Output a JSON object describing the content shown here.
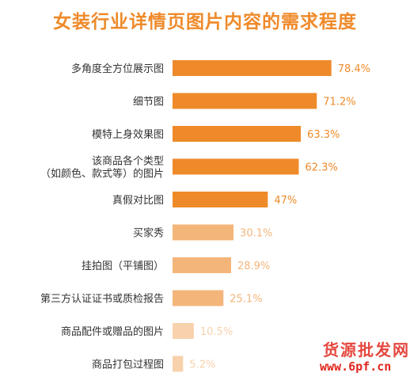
{
  "colors": {
    "dark": "#ef8a2a",
    "light": "#f4b57a",
    "lighter": "#f8d2ac",
    "title": "#ef8a2a",
    "watermark": "#e0281e"
  },
  "chart_data": {
    "type": "bar",
    "orientation": "horizontal",
    "title": "女装行业详情页图片内容的需求程度",
    "xlabel": "",
    "ylabel": "",
    "xlim": [
      0,
      100
    ],
    "grid": false,
    "categories": [
      [
        "多角度全方位展示图"
      ],
      [
        "细节图"
      ],
      [
        "模特上身效果图"
      ],
      [
        "该商品各个类型",
        "（如颜色、款式等）的图片"
      ],
      [
        "真假对比图"
      ],
      [
        "买家秀"
      ],
      [
        "挂拍图（平铺图）"
      ],
      [
        "第三方认证证书或质检报告"
      ],
      [
        "商品配件或赠品的图片"
      ],
      [
        "商品打包过程图"
      ]
    ],
    "values": [
      78.4,
      71.2,
      63.3,
      62.3,
      47,
      30.1,
      28.9,
      25.1,
      10.5,
      5.2
    ],
    "value_labels": [
      "78.4%",
      "71.2%",
      "63.3%",
      "62.3%",
      "47%",
      "30.1%",
      "28.9%",
      "25.1%",
      "10.5%",
      "5.2%"
    ],
    "bar_shades": [
      "dark",
      "dark",
      "dark",
      "dark",
      "dark",
      "light",
      "light",
      "light",
      "lighter",
      "lighter"
    ]
  },
  "watermark": {
    "line1": "货源批发网",
    "line2": "www.6pf.cn"
  }
}
